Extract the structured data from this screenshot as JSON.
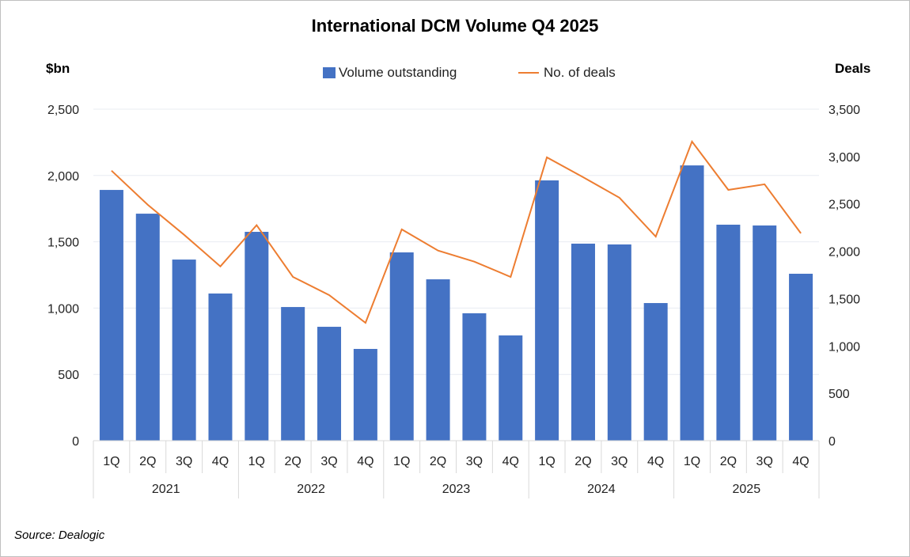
{
  "chart_data": {
    "type": "bar+line",
    "title": "International DCM Volume Q4 2025",
    "ylabel_left": "$bn",
    "ylabel_right": "Deals",
    "ylim_left": [
      0,
      2500
    ],
    "ylim_right": [
      0,
      3500
    ],
    "yticks_left": [
      "0",
      "500",
      "1,000",
      "1,500",
      "2,000",
      "2,500"
    ],
    "yticks_right": [
      "0",
      "500",
      "1,000",
      "1,500",
      "2,000",
      "2,500",
      "3,000",
      "3,500"
    ],
    "grid": true,
    "legend_position": "top",
    "quarters": [
      "1Q",
      "2Q",
      "3Q",
      "4Q",
      "1Q",
      "2Q",
      "3Q",
      "4Q",
      "1Q",
      "2Q",
      "3Q",
      "4Q",
      "1Q",
      "2Q",
      "3Q",
      "4Q",
      "1Q",
      "2Q",
      "3Q",
      "4Q"
    ],
    "years": [
      "2021",
      "2022",
      "2023",
      "2024",
      "2025"
    ],
    "series": [
      {
        "name": "Volume outstanding",
        "type": "bar",
        "axis": "left",
        "color": "#4472c4",
        "values": [
          1891,
          1712,
          1366,
          1110,
          1575,
          1008,
          859,
          692,
          1420,
          1217,
          961,
          794,
          1963,
          1486,
          1480,
          1038,
          2076,
          1629,
          1623,
          1259
        ]
      },
      {
        "name": "No. of deals",
        "type": "line",
        "axis": "right",
        "color": "#ed7d31",
        "values": [
          2851,
          2490,
          2174,
          1840,
          2275,
          1729,
          1537,
          1245,
          2231,
          2007,
          1890,
          1729,
          2991,
          2782,
          2565,
          2155,
          3158,
          2648,
          2707,
          2189
        ]
      }
    ]
  },
  "source": "Source: Dealogic"
}
